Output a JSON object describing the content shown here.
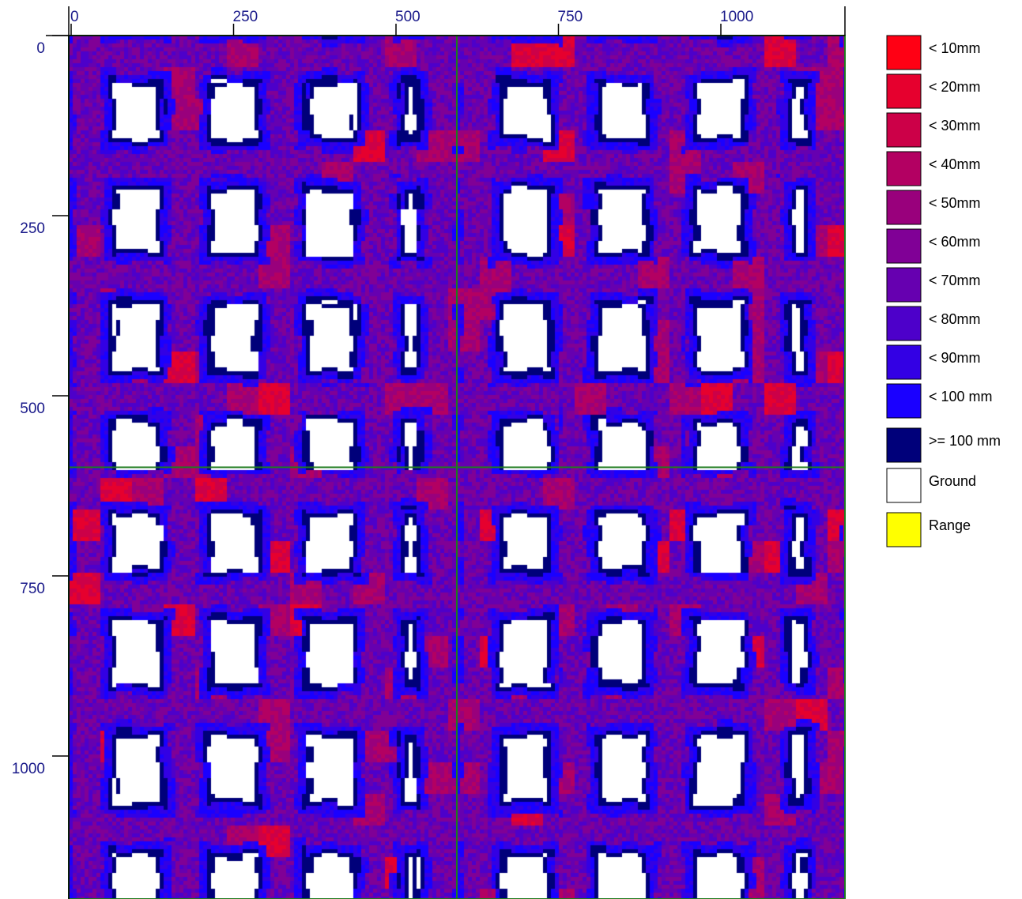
{
  "chart_data": {
    "type": "heatmap",
    "title": "",
    "xlabel": "",
    "ylabel": "",
    "xlim": [
      0,
      1190
    ],
    "ylim": [
      0,
      1190
    ],
    "x_ticks": [
      0,
      250,
      500,
      750,
      1000
    ],
    "y_ticks": [
      0,
      250,
      500,
      750,
      1000
    ],
    "panel_grid": "2x2",
    "panel_border_color": "#1e7b1e",
    "legend": [
      {
        "label": "< 10mm",
        "color": "#ff0014"
      },
      {
        "label": "< 20mm",
        "color": "#e6002e"
      },
      {
        "label": "< 30mm",
        "color": "#cc0048"
      },
      {
        "label": "< 40mm",
        "color": "#b30062"
      },
      {
        "label": "< 50mm",
        "color": "#99007c"
      },
      {
        "label": "< 60mm",
        "color": "#800096"
      },
      {
        "label": "< 70mm",
        "color": "#6600b0"
      },
      {
        "label": "< 80mm",
        "color": "#4d00ca"
      },
      {
        "label": "< 90mm",
        "color": "#3300e4"
      },
      {
        "label": "< 100 mm",
        "color": "#1a00ff"
      },
      {
        "label": ">= 100 mm",
        "color": "#00007a"
      },
      {
        "label": "Ground",
        "color": "#ffffff"
      },
      {
        "label": "Range",
        "color": "#ffff00"
      }
    ]
  }
}
